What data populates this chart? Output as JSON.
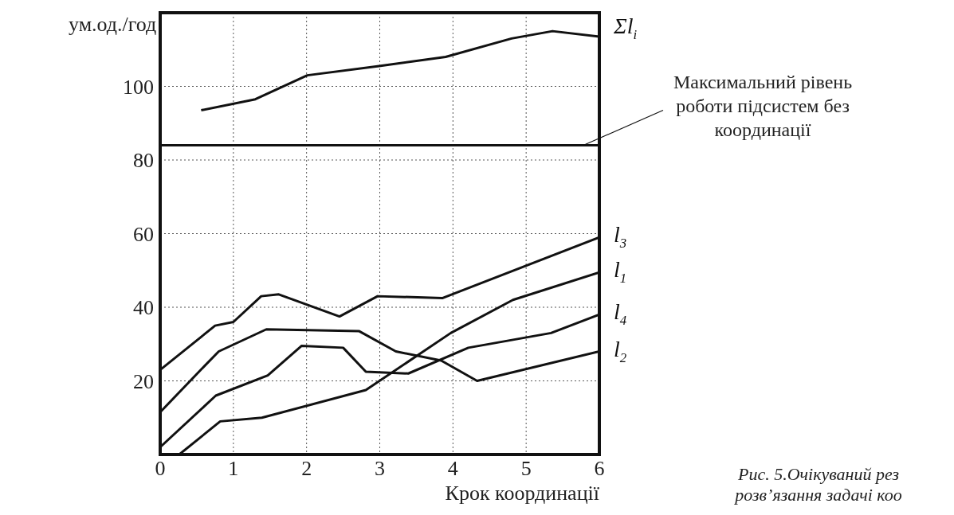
{
  "chart_data": {
    "type": "line",
    "xlabel": "Крок координації",
    "ylabel": "ум.од./год",
    "xlim": [
      0,
      6
    ],
    "xticks": [
      0,
      1,
      2,
      3,
      4,
      5,
      6
    ],
    "ylim": [
      0,
      120
    ],
    "yticks": [
      {
        "value": 0,
        "label": null
      },
      20,
      40,
      60,
      80,
      100
    ],
    "grid": true,
    "marker": "none",
    "line_style": "solid",
    "series": [
      {
        "name": "Σl$_{i}$",
        "color": "#111111",
        "x": [
          0.56,
          1.3,
          2.01,
          2.99,
          3.9,
          4.8,
          5.36,
          6
        ],
        "values": [
          93.5,
          96.5,
          103,
          105.5,
          108,
          113,
          115,
          113.5
        ]
      },
      {
        "name": "l$_{3}$",
        "color": "#111111",
        "x": [
          0,
          0.75,
          1,
          1.38,
          1.62,
          2.45,
          2.97,
          3.86,
          6
        ],
        "values": [
          23,
          35,
          36,
          43,
          43.5,
          37.5,
          43,
          42.5,
          59
        ]
      },
      {
        "name": "l$_{1}$",
        "color": "#111111",
        "x": [
          0.26,
          0.82,
          1.39,
          2.81,
          3.97,
          4.82,
          6
        ],
        "values": [
          0,
          9,
          10,
          17.5,
          33,
          42,
          49.5
        ]
      },
      {
        "name": "l$_{4}$",
        "color": "#111111",
        "x": [
          0,
          0.76,
          1.47,
          1.93,
          2.5,
          2.81,
          3.39,
          4.21,
          5.34,
          6
        ],
        "values": [
          2,
          16,
          21.5,
          29.5,
          29,
          22.5,
          22,
          29,
          33,
          38
        ]
      },
      {
        "name": "l$_{2}$",
        "color": "#111111",
        "x": [
          0,
          0.53,
          0.8,
          1.45,
          2.72,
          3.22,
          3.84,
          4.33,
          6
        ],
        "values": [
          11.5,
          22.5,
          28,
          34,
          33.5,
          28,
          25.5,
          20,
          28
        ]
      }
    ],
    "ref_lines": [
      {
        "axis": "y",
        "value": 84,
        "label": "Максимальний рівень роботи підсистем без координації",
        "color": "#111111"
      }
    ],
    "annotations": [
      "Рис. 5.Очікуваний рез",
      "розв’язання задачі коо"
    ]
  }
}
